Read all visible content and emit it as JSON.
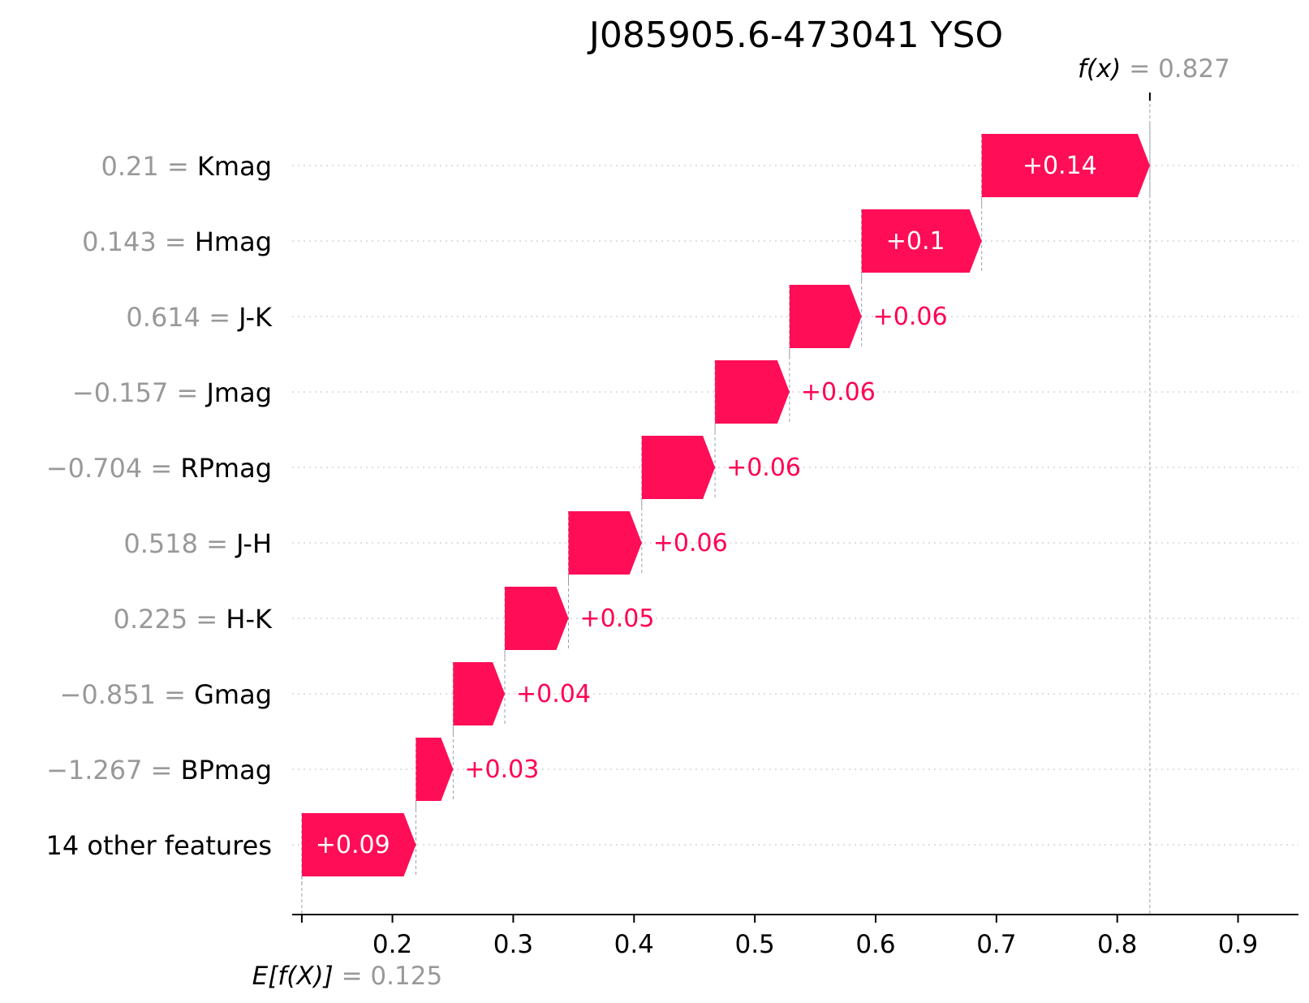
{
  "chart_data": {
    "type": "waterfall",
    "title": "J085905.6-473041 YSO",
    "features": [
      {
        "value": "0.21",
        "name": "Kmag",
        "contribution": 0.14,
        "label": "+0.14"
      },
      {
        "value": "0.143",
        "name": "Hmag",
        "contribution": 0.1,
        "label": "+0.1"
      },
      {
        "value": "0.614",
        "name": "J-K",
        "contribution": 0.06,
        "label": "+0.06"
      },
      {
        "value": "−0.157",
        "name": "Jmag",
        "contribution": 0.062,
        "label": "+0.06"
      },
      {
        "value": "−0.704",
        "name": "RPmag",
        "contribution": 0.061,
        "label": "+0.06"
      },
      {
        "value": "0.518",
        "name": "J-H",
        "contribution": 0.061,
        "label": "+0.06"
      },
      {
        "value": "0.225",
        "name": "H-K",
        "contribution": 0.053,
        "label": "+0.05"
      },
      {
        "value": "−0.851",
        "name": "Gmag",
        "contribution": 0.043,
        "label": "+0.04"
      },
      {
        "value": "−1.267",
        "name": "BPmag",
        "contribution": 0.031,
        "label": "+0.03"
      },
      {
        "value": "",
        "name": "14 other features",
        "contribution": 0.095,
        "label": "+0.09"
      }
    ],
    "base_value": 0.125,
    "base_label": "E[f(X)]",
    "base_value_text": "= 0.125",
    "output_value": 0.827,
    "output_label": "f(x)",
    "output_value_text": "= 0.827",
    "x_ticks": [
      0.2,
      0.3,
      0.4,
      0.5,
      0.6,
      0.7,
      0.8,
      0.9
    ],
    "x_tick_labels": [
      "0.2",
      "0.3",
      "0.4",
      "0.5",
      "0.6",
      "0.7",
      "0.8",
      "0.9"
    ],
    "xlim": [
      0.117,
      0.95
    ],
    "bar_color": "#ff0d57",
    "text_color_positive": "#ff0052"
  }
}
